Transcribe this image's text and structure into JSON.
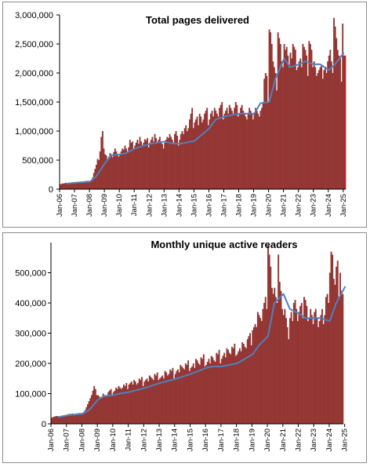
{
  "chart_data": [
    {
      "type": "bar",
      "title": "Total pages delivered",
      "xlabel": "",
      "ylabel": "",
      "ylim": [
        0,
        3000000
      ],
      "yticks": [
        0,
        500000,
        1000000,
        1500000,
        2000000,
        2500000,
        3000000
      ],
      "ytick_labels": [
        "0",
        "500,000",
        "1,000,000",
        "1,500,000",
        "2,000,000",
        "2,500,000",
        "3,000,000"
      ],
      "xtick_labels": [
        "Jan-06",
        "Jan-07",
        "Jan-08",
        "Jan-09",
        "Jan-10",
        "Jan-11",
        "Jan-12",
        "Jan-13",
        "Jan-14",
        "Jan-15",
        "Jan-16",
        "Jan-17",
        "Jan-18",
        "Jan-19",
        "Jan-20",
        "Jan-21",
        "Jan-22",
        "Jan-23",
        "Jan-24",
        "Jan-25"
      ],
      "bar_color": "#943634",
      "last_bar_color": "#c0181b",
      "trend_color": "#4f81bd",
      "grid": false,
      "legend": "none",
      "series": [
        {
          "kind": "monthly-bars",
          "start": "2006-01",
          "values": [
            85000,
            90000,
            100000,
            95000,
            110000,
            100000,
            90000,
            105000,
            115000,
            110000,
            120000,
            100000,
            120000,
            115000,
            125000,
            110000,
            130000,
            120000,
            110000,
            125000,
            140000,
            130000,
            145000,
            115000,
            140000,
            150000,
            200000,
            280000,
            350000,
            420000,
            520000,
            500000,
            650000,
            900000,
            1000000,
            700000,
            600000,
            580000,
            500000,
            560000,
            620000,
            600000,
            550000,
            640000,
            700000,
            650000,
            600000,
            560000,
            600000,
            650000,
            700000,
            680000,
            750000,
            700000,
            650000,
            720000,
            850000,
            800000,
            820000,
            700000,
            750000,
            800000,
            850000,
            780000,
            900000,
            820000,
            760000,
            800000,
            860000,
            840000,
            880000,
            720000,
            800000,
            850000,
            900000,
            820000,
            950000,
            880000,
            800000,
            850000,
            900000,
            820000,
            780000,
            700000,
            800000,
            850000,
            900000,
            880000,
            950000,
            900000,
            850000,
            800000,
            950000,
            1000000,
            920000,
            750000,
            850000,
            950000,
            1000000,
            950000,
            1050000,
            1100000,
            1000000,
            1050000,
            1200000,
            1300000,
            1400000,
            1050000,
            1150000,
            1200000,
            1250000,
            1100000,
            1300000,
            1250000,
            1150000,
            1200000,
            1300000,
            1350000,
            1400000,
            1100000,
            1200000,
            1300000,
            1350000,
            1250000,
            1400000,
            1350000,
            1300000,
            1250000,
            1400000,
            1450000,
            1500000,
            1200000,
            1300000,
            1350000,
            1400000,
            1300000,
            1450000,
            1400000,
            1350000,
            1300000,
            1400000,
            1500000,
            1450000,
            1250000,
            1300000,
            1400000,
            1450000,
            1350000,
            1300000,
            1250000,
            1200000,
            1300000,
            1400000,
            1350000,
            1300000,
            1200000,
            1300000,
            1400000,
            1350000,
            1300000,
            1250000,
            1350000,
            1400000,
            1500000,
            1900000,
            2000000,
            1950000,
            1500000,
            2750000,
            2700000,
            2500000,
            2200000,
            2100000,
            2000000,
            1700000,
            2700000,
            2600000,
            2500000,
            2200000,
            2100000,
            2500000,
            2400000,
            2450000,
            2300000,
            2100000,
            2350000,
            2250000,
            2500000,
            2450000,
            2400000,
            2050000,
            2100000,
            2200000,
            2250000,
            2100000,
            2500000,
            2450000,
            2400000,
            2300000,
            1950000,
            2550000,
            2500000,
            2400000,
            2100000,
            2200000,
            2100000,
            1950000,
            2000000,
            2050000,
            2100000,
            2150000,
            1900000,
            2050000,
            2100000,
            2000000,
            2200000,
            2300000,
            2400000,
            2200000,
            2000000,
            2950000,
            2800000,
            2600000,
            2400000,
            2300000,
            2250000,
            1850000,
            2850000,
            2300000,
            2300000
          ]
        },
        {
          "kind": "trend-line",
          "points": [
            [
              "2006-06",
              95000
            ],
            [
              "2007-01",
              110000
            ],
            [
              "2008-01",
              130000
            ],
            [
              "2008-06",
              220000
            ],
            [
              "2009-01",
              450000
            ],
            [
              "2009-06",
              580000
            ],
            [
              "2010-01",
              600000
            ],
            [
              "2010-06",
              620000
            ],
            [
              "2011-01",
              700000
            ],
            [
              "2012-01",
              780000
            ],
            [
              "2013-01",
              820000
            ],
            [
              "2013-06",
              790000
            ],
            [
              "2014-01",
              780000
            ],
            [
              "2015-01",
              830000
            ],
            [
              "2016-01",
              1050000
            ],
            [
              "2016-06",
              1200000
            ],
            [
              "2017-01",
              1250000
            ],
            [
              "2018-01",
              1300000
            ],
            [
              "2019-01",
              1300000
            ],
            [
              "2019-06",
              1480000
            ],
            [
              "2020-01",
              1500000
            ],
            [
              "2020-06",
              1900000
            ],
            [
              "2021-01",
              2250000
            ],
            [
              "2021-06",
              2100000
            ],
            [
              "2022-01",
              2150000
            ],
            [
              "2022-06",
              2200000
            ],
            [
              "2023-01",
              2150000
            ],
            [
              "2023-06",
              2150000
            ],
            [
              "2024-01",
              2050000
            ],
            [
              "2024-06",
              2150000
            ],
            [
              "2025-01",
              2350000
            ]
          ]
        }
      ]
    },
    {
      "type": "bar",
      "title": "Monthly unique active readers",
      "xlabel": "",
      "ylabel": "",
      "ylim": [
        0,
        600000
      ],
      "yticks": [
        0,
        100000,
        200000,
        300000,
        400000,
        500000
      ],
      "ytick_labels": [
        "0",
        "100,000",
        "200,000",
        "300,000",
        "400,000",
        "500,000"
      ],
      "xtick_labels": [
        "Jan-06",
        "Jan-07",
        "Jan-08",
        "Jan-09",
        "Jan-10",
        "Jan-11",
        "Jan-12",
        "Jan-13",
        "Jan-14",
        "Jan-15",
        "Jan-16",
        "Jan-17",
        "Jan-18",
        "Jan-19",
        "Jan-20",
        "Jan-21",
        "Jan-22",
        "Jan-23",
        "Jan-24",
        "Jan-25"
      ],
      "bar_color": "#943634",
      "last_bar_color": "#943634",
      "trend_color": "#4f81bd",
      "grid": false,
      "legend": "none",
      "series": [
        {
          "kind": "monthly-bars",
          "start": "2006-01",
          "values": [
            20000,
            22000,
            24000,
            25000,
            26000,
            25000,
            24000,
            26000,
            27000,
            26000,
            28000,
            25000,
            30000,
            32000,
            33000,
            32000,
            34000,
            33000,
            32000,
            34000,
            35000,
            34000,
            36000,
            33000,
            36000,
            40000,
            45000,
            55000,
            65000,
            75000,
            85000,
            95000,
            110000,
            125000,
            115000,
            95000,
            95000,
            90000,
            85000,
            90000,
            100000,
            95000,
            90000,
            95000,
            105000,
            110000,
            115000,
            95000,
            105000,
            110000,
            120000,
            115000,
            125000,
            120000,
            115000,
            120000,
            130000,
            125000,
            135000,
            115000,
            130000,
            135000,
            140000,
            130000,
            145000,
            140000,
            130000,
            135000,
            150000,
            145000,
            155000,
            125000,
            140000,
            145000,
            150000,
            140000,
            160000,
            155000,
            150000,
            145000,
            165000,
            160000,
            170000,
            145000,
            150000,
            155000,
            160000,
            150000,
            175000,
            170000,
            160000,
            165000,
            180000,
            175000,
            185000,
            150000,
            165000,
            175000,
            180000,
            170000,
            195000,
            190000,
            185000,
            180000,
            200000,
            195000,
            210000,
            175000,
            185000,
            190000,
            200000,
            185000,
            215000,
            210000,
            200000,
            195000,
            220000,
            215000,
            230000,
            190000,
            195000,
            205000,
            215000,
            200000,
            225000,
            220000,
            210000,
            205000,
            235000,
            230000,
            245000,
            200000,
            215000,
            225000,
            235000,
            220000,
            250000,
            245000,
            235000,
            230000,
            255000,
            250000,
            265000,
            225000,
            230000,
            240000,
            250000,
            240000,
            270000,
            265000,
            255000,
            250000,
            280000,
            290000,
            300000,
            260000,
            310000,
            320000,
            330000,
            320000,
            370000,
            360000,
            350000,
            340000,
            380000,
            400000,
            420000,
            380000,
            590000,
            560000,
            520000,
            450000,
            430000,
            450000,
            420000,
            400000,
            560000,
            470000,
            440000,
            380000,
            360000,
            380000,
            350000,
            320000,
            280000,
            350000,
            370000,
            340000,
            400000,
            410000,
            380000,
            340000,
            370000,
            390000,
            400000,
            350000,
            420000,
            410000,
            390000,
            340000,
            350000,
            380000,
            360000,
            330000,
            370000,
            380000,
            350000,
            320000,
            340000,
            360000,
            380000,
            330000,
            360000,
            420000,
            430000,
            400000,
            500000,
            570000,
            560000,
            480000,
            460000,
            520000,
            540000,
            420000,
            500000,
            440000,
            430000
          ]
        },
        {
          "kind": "trend-line",
          "points": [
            [
              "2006-06",
              22000
            ],
            [
              "2007-01",
              28000
            ],
            [
              "2008-01",
              33000
            ],
            [
              "2008-06",
              45000
            ],
            [
              "2009-01",
              80000
            ],
            [
              "2009-06",
              92000
            ],
            [
              "2010-01",
              95000
            ],
            [
              "2010-06",
              100000
            ],
            [
              "2011-01",
              105000
            ],
            [
              "2012-01",
              118000
            ],
            [
              "2013-01",
              135000
            ],
            [
              "2014-01",
              148000
            ],
            [
              "2015-01",
              165000
            ],
            [
              "2016-01",
              185000
            ],
            [
              "2016-06",
              190000
            ],
            [
              "2017-01",
              190000
            ],
            [
              "2018-01",
              200000
            ],
            [
              "2019-01",
              230000
            ],
            [
              "2019-06",
              260000
            ],
            [
              "2020-01",
              290000
            ],
            [
              "2020-06",
              400000
            ],
            [
              "2021-01",
              430000
            ],
            [
              "2021-06",
              380000
            ],
            [
              "2022-01",
              365000
            ],
            [
              "2022-06",
              350000
            ],
            [
              "2023-01",
              350000
            ],
            [
              "2023-06",
              350000
            ],
            [
              "2024-01",
              340000
            ],
            [
              "2024-06",
              400000
            ],
            [
              "2025-01",
              455000
            ]
          ]
        }
      ]
    }
  ]
}
